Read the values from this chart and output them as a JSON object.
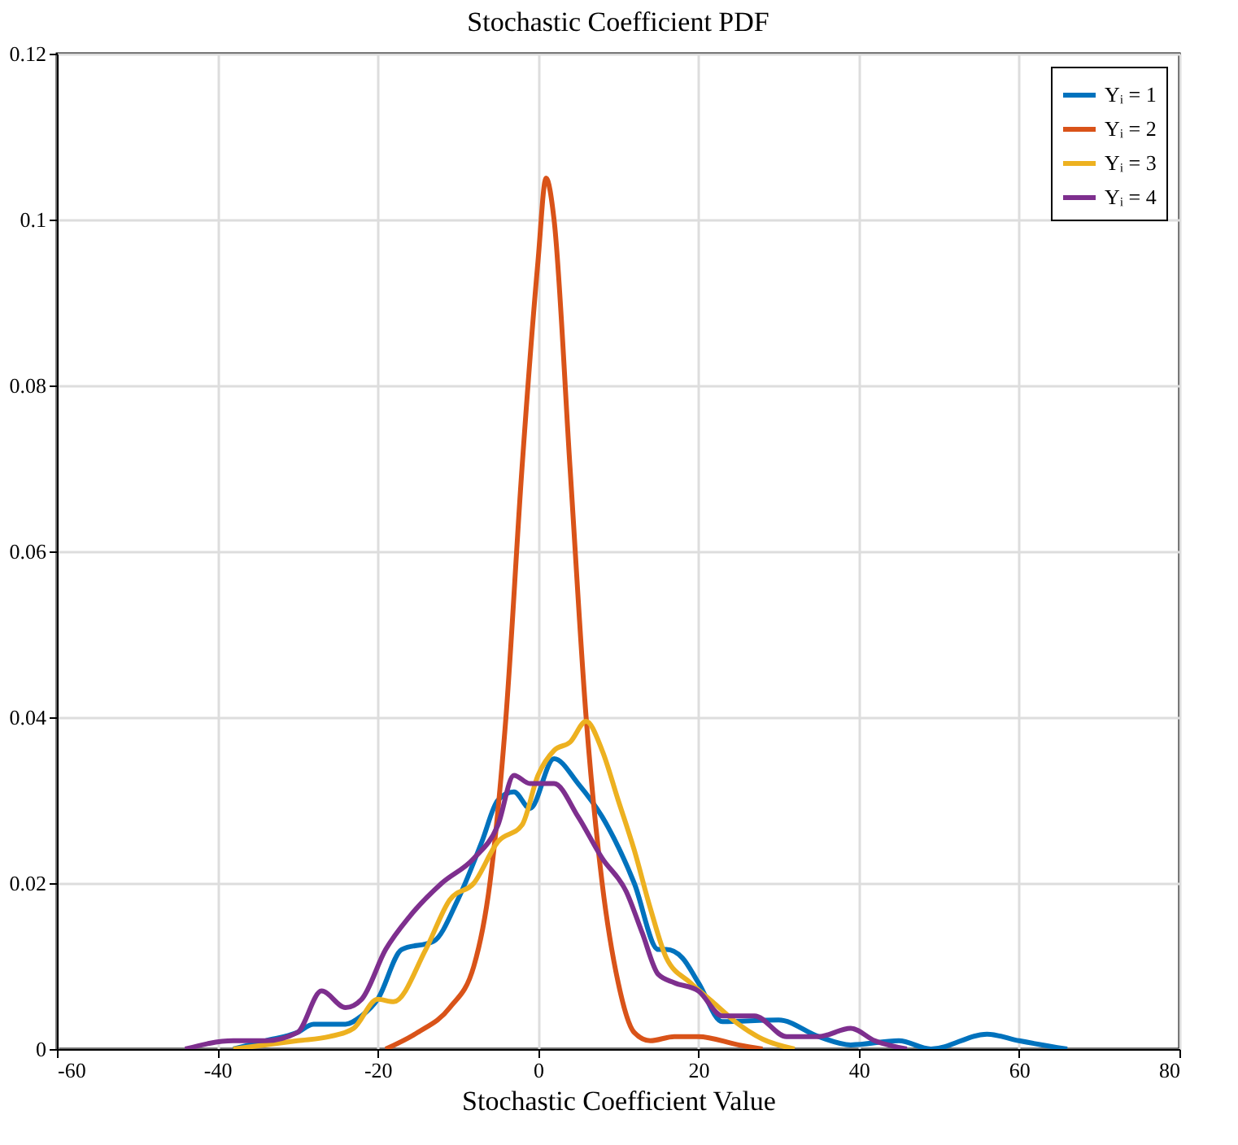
{
  "chart_data": {
    "type": "line",
    "title": "Stochastic Coefficient PDF",
    "xlabel": "Stochastic Coefficient Value",
    "xlim": [
      -60,
      80
    ],
    "xticks": [
      -60,
      -40,
      -20,
      0,
      20,
      40,
      60,
      80
    ],
    "ylim": [
      0,
      0.12
    ],
    "yticks": [
      0,
      0.02,
      0.04,
      0.06,
      0.08,
      0.1,
      0.12
    ],
    "grid": true,
    "legend": "top right",
    "line_style": "solid",
    "marker": "none",
    "series": [
      {
        "name": "Yᵢ = 1",
        "color": "#0072bd",
        "x": [
          -38,
          -34,
          -30,
          -28,
          -24,
          -22,
          -20,
          -17,
          -13,
          -10,
          -7,
          -5,
          -3,
          -1,
          2,
          5,
          8,
          12,
          15,
          16,
          18,
          20,
          23,
          30,
          35,
          39,
          45,
          49,
          56,
          60,
          66
        ],
        "values": [
          0,
          0.001,
          0.002,
          0.003,
          0.003,
          0.004,
          0.006,
          0.012,
          0.013,
          0.018,
          0.025,
          0.03,
          0.031,
          0.029,
          0.035,
          0.032,
          0.028,
          0.02,
          0.012,
          0.012,
          0.011,
          0.008,
          0.0033,
          0.0035,
          0.0015,
          0.0005,
          0.001,
          0,
          0.0018,
          0.001,
          0
        ]
      },
      {
        "name": "Yᵢ = 2",
        "color": "#d95319",
        "x": [
          -19,
          -15,
          -11,
          -8,
          -6,
          -4,
          -2,
          0,
          1,
          2,
          4,
          6,
          8,
          10,
          12,
          14,
          17,
          20,
          25,
          28
        ],
        "values": [
          0,
          0.002,
          0.005,
          0.01,
          0.02,
          0.04,
          0.07,
          0.095,
          0.105,
          0.1,
          0.07,
          0.04,
          0.02,
          0.008,
          0.002,
          0.001,
          0.0015,
          0.0015,
          0.0005,
          0
        ]
      },
      {
        "name": "Yᵢ = 3",
        "color": "#edb120",
        "x": [
          -38,
          -30,
          -26,
          -23,
          -20,
          -18,
          -14,
          -11,
          -8,
          -5,
          -2,
          0,
          2,
          4,
          6,
          8,
          10,
          12,
          14,
          16,
          19,
          22,
          25,
          28,
          32
        ],
        "values": [
          0,
          0.001,
          0.0015,
          0.0025,
          0.006,
          0.0057,
          0.012,
          0.018,
          0.02,
          0.025,
          0.027,
          0.033,
          0.036,
          0.037,
          0.0395,
          0.036,
          0.03,
          0.024,
          0.017,
          0.011,
          0.008,
          0.0055,
          0.003,
          0.0012,
          0
        ]
      },
      {
        "name": "Yᵢ = 4",
        "color": "#7e2f8e",
        "x": [
          -44,
          -38,
          -34,
          -30,
          -27,
          -24,
          -22,
          -19,
          -16,
          -12,
          -8,
          -5,
          -3,
          -1,
          2,
          5,
          8,
          11,
          13,
          15,
          17,
          20,
          23,
          27,
          31,
          35,
          39,
          42,
          46
        ],
        "values": [
          0,
          0.001,
          0.001,
          0.002,
          0.007,
          0.005,
          0.006,
          0.012,
          0.016,
          0.02,
          0.023,
          0.027,
          0.033,
          0.032,
          0.032,
          0.028,
          0.023,
          0.019,
          0.014,
          0.009,
          0.008,
          0.007,
          0.004,
          0.004,
          0.0015,
          0.0015,
          0.0025,
          0.001,
          0
        ]
      }
    ]
  }
}
